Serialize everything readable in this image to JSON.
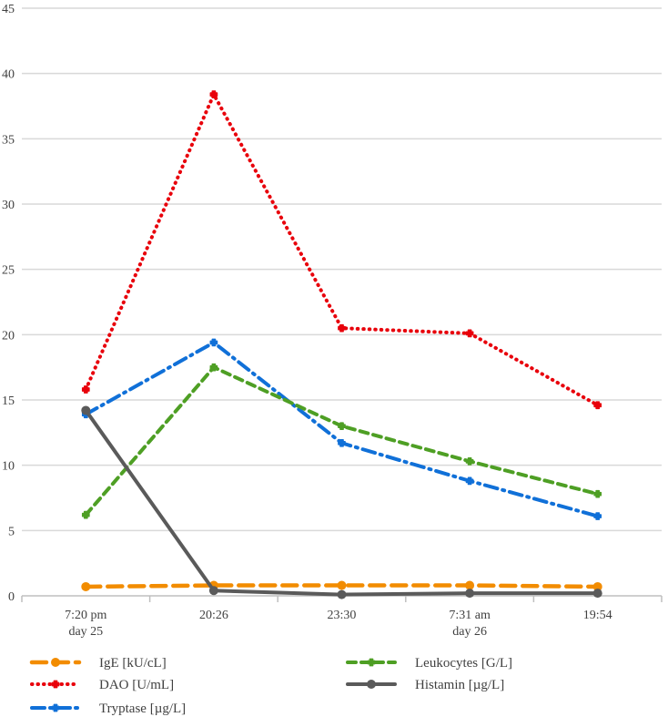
{
  "chart_data": {
    "type": "line",
    "categories": [
      [
        "7:20 pm",
        "day 25"
      ],
      [
        "20:26"
      ],
      [
        "23:30"
      ],
      [
        "7:31 am",
        "day 26"
      ],
      [
        "19:54"
      ]
    ],
    "yticks": [
      "0",
      "5",
      "10",
      "15",
      "20",
      "25",
      "30",
      "35",
      "40",
      "45"
    ],
    "ylim": [
      0,
      45
    ],
    "grid": true,
    "legend_position": "bottom",
    "series": [
      {
        "name": "IgE [kU/cL]",
        "values": [
          0.7,
          0.8,
          0.8,
          0.8,
          0.7
        ],
        "color": "#f28c00",
        "style": "long-dash",
        "marker": "circle"
      },
      {
        "name": "DAO [U/mL]",
        "values": [
          15.8,
          38.4,
          20.5,
          20.1,
          14.6
        ],
        "color": "#e8000b",
        "style": "dotted",
        "marker": "cross"
      },
      {
        "name": "Tryptase [µg/L]",
        "values": [
          13.9,
          19.4,
          11.7,
          8.8,
          6.1
        ],
        "color": "#1070d8",
        "style": "dash-dot",
        "marker": "cross"
      },
      {
        "name": "Leukocytes [G/L]",
        "values": [
          6.2,
          17.5,
          13.0,
          10.3,
          7.8
        ],
        "color": "#4e9f24",
        "style": "dashed",
        "marker": "cross"
      },
      {
        "name": "Histamin [µg/L]",
        "values": [
          14.2,
          0.4,
          0.1,
          0.2,
          0.2
        ],
        "color": "#5a5a5a",
        "style": "solid",
        "marker": "circle"
      }
    ]
  }
}
